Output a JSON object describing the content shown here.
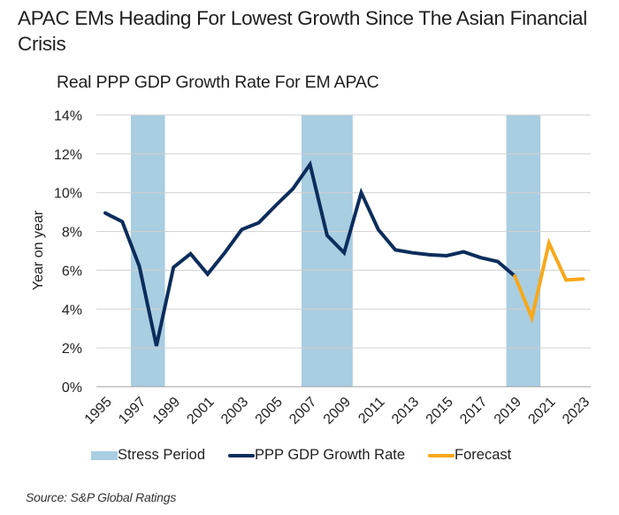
{
  "title": "APAC EMs Heading For Lowest Growth Since The Asian Financial Crisis",
  "source": "Source: S&P Global Ratings",
  "colors": {
    "stress": "#a9cde1",
    "growth": "#0b2d5c",
    "forecast": "#f7a81b",
    "grid": "#d0d0d0",
    "axis": "#a0a0a0"
  },
  "chart_data": {
    "type": "line",
    "title": "Real PPP GDP Growth Rate For EM APAC",
    "xlabel": "",
    "ylabel": "Year on year",
    "ylim": [
      0,
      14
    ],
    "xlim": [
      1995,
      2023
    ],
    "grid": true,
    "legend_position": "bottom",
    "yticks": [
      0,
      2,
      4,
      6,
      8,
      10,
      12,
      14
    ],
    "ytick_labels": [
      "0%",
      "2%",
      "4%",
      "6%",
      "8%",
      "10%",
      "12%",
      "14%"
    ],
    "xtick_labels": [
      "1995",
      "1997",
      "1999",
      "2001",
      "2003",
      "2005",
      "2007",
      "2009",
      "2011",
      "2013",
      "2015",
      "2017",
      "2019",
      "2021",
      "2023"
    ],
    "legend": [
      "Stress Period",
      "PPP GDP Growth Rate",
      "Forecast"
    ],
    "stress_periods": [
      {
        "start": 1997,
        "end": 1998
      },
      {
        "start": 2007,
        "end": 2009
      },
      {
        "start": 2019,
        "end": 2020
      }
    ],
    "series": [
      {
        "name": "PPP GDP Growth Rate",
        "x": [
          1995,
          1996,
          1997,
          1998,
          1999,
          2000,
          2001,
          2002,
          2003,
          2004,
          2005,
          2006,
          2007,
          2008,
          2009,
          2010,
          2011,
          2012,
          2013,
          2014,
          2015,
          2016,
          2017,
          2018,
          2019
        ],
        "values": [
          8.95,
          8.5,
          6.2,
          2.1,
          6.15,
          6.85,
          5.8,
          6.9,
          8.1,
          8.45,
          9.35,
          10.2,
          11.45,
          7.8,
          6.9,
          10.0,
          8.1,
          7.05,
          6.9,
          6.8,
          6.75,
          6.95,
          6.65,
          6.45,
          5.7
        ]
      },
      {
        "name": "Forecast",
        "x": [
          2019,
          2020,
          2021,
          2022,
          2023
        ],
        "values": [
          5.7,
          3.55,
          7.4,
          5.5,
          5.55
        ]
      }
    ]
  }
}
